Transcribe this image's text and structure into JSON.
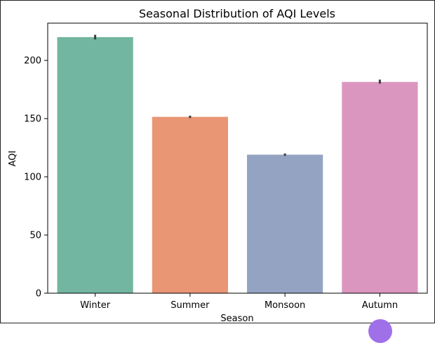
{
  "chart_data": {
    "type": "bar",
    "title": "Seasonal Distribution of AQI Levels",
    "xlabel": "Season",
    "ylabel": "AQI",
    "categories": [
      "Winter",
      "Summer",
      "Monsoon",
      "Autumn"
    ],
    "values": [
      220,
      151.5,
      119,
      181.5
    ],
    "error": [
      [
        218,
        222
      ],
      [
        150.5,
        152.5
      ],
      [
        118,
        120
      ],
      [
        180,
        183.5
      ]
    ],
    "colors": [
      "#72b6a1",
      "#e99675",
      "#95a3c3",
      "#db96c0"
    ],
    "ylim": [
      0,
      232
    ],
    "yticks": [
      0,
      50,
      100,
      150,
      200
    ],
    "ytick_labels": [
      "0",
      "50",
      "100",
      "150",
      "200"
    ],
    "grid": false,
    "legend": "none"
  }
}
